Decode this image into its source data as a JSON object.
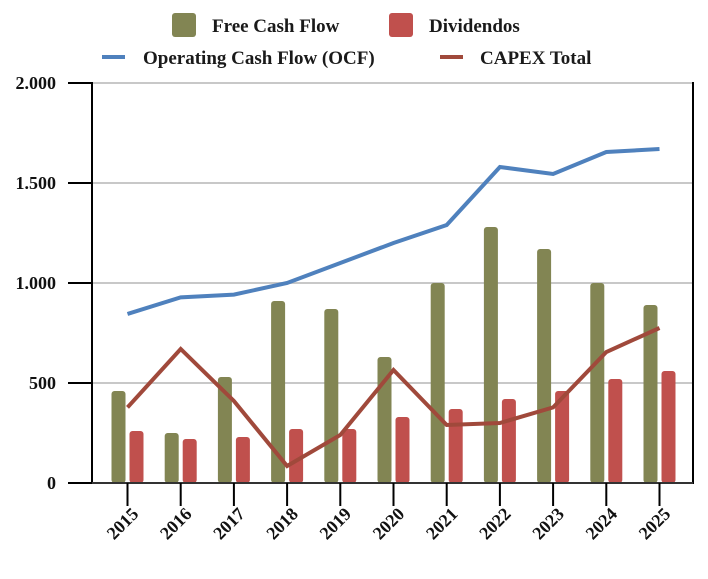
{
  "chart_data": {
    "type": "bar",
    "title": "",
    "xlabel": "",
    "ylabel": "",
    "categories": [
      "2015",
      "2016",
      "2017",
      "2018",
      "2019",
      "2020",
      "2021",
      "2022",
      "2023",
      "2024",
      "2025"
    ],
    "ylim": [
      0,
      2000
    ],
    "yticks": [
      0,
      500,
      1000,
      1500,
      2000
    ],
    "ytick_labels": [
      "0",
      "500",
      "1.000",
      "1.500",
      "2.000"
    ],
    "grid": true,
    "legend_position": "top",
    "series": [
      {
        "name": "Free Cash Flow",
        "kind": "bar",
        "color": "#828553",
        "values": [
          460,
          250,
          530,
          910,
          870,
          630,
          1000,
          1280,
          1170,
          1000,
          890
        ]
      },
      {
        "name": "Dividendos",
        "kind": "bar",
        "color": "#c0504d",
        "values": [
          260,
          220,
          230,
          270,
          270,
          330,
          370,
          420,
          460,
          520,
          560
        ]
      },
      {
        "name": "Operating Cash Flow (OCF)",
        "kind": "line",
        "color": "#4f81bd",
        "values": [
          845,
          928,
          942,
          1000,
          1100,
          1200,
          1290,
          1580,
          1545,
          1655,
          1670
        ]
      },
      {
        "name": "CAPEX Total",
        "kind": "line",
        "color": "#a0493b",
        "values": [
          378,
          670,
          410,
          85,
          240,
          565,
          290,
          300,
          378,
          655,
          775
        ]
      }
    ]
  }
}
